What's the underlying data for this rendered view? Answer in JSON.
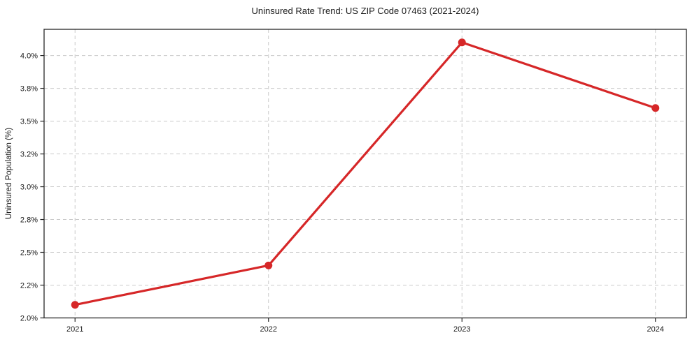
{
  "figure": {
    "background": "#ffffff"
  },
  "chart_data": {
    "type": "line",
    "title": "Uninsured Rate Trend: US ZIP Code 07463 (2021-2024)",
    "xlabel": "",
    "ylabel": "Uninsured Population (%)",
    "x": [
      2021,
      2022,
      2023,
      2024
    ],
    "series": [
      {
        "name": "Uninsured rate",
        "values": [
          2.1,
          2.4,
          4.1,
          3.6
        ],
        "color": "#d62728",
        "marker": "circle",
        "line_width": 3.2,
        "marker_radius": 5.5
      }
    ],
    "xlim": [
      2020.84,
      2024.16
    ],
    "ylim": [
      2.0,
      4.2
    ],
    "xticks": {
      "values": [
        2021,
        2022,
        2023,
        2024
      ],
      "labels": [
        "2021",
        "2022",
        "2023",
        "2024"
      ]
    },
    "yticks": {
      "values": [
        2.0,
        2.25,
        2.5,
        2.75,
        3.0,
        3.25,
        3.5,
        3.75,
        4.0
      ],
      "labels": [
        "2.0%",
        "2.2%",
        "2.5%",
        "2.8%",
        "3.0%",
        "3.2%",
        "3.5%",
        "3.8%",
        "4.0%"
      ]
    },
    "grid": true,
    "grid_color": "#c9c9c9",
    "grid_dash": "5 4",
    "axis_color": "#262626",
    "text_color": "#1a1a1a",
    "legend": null
  }
}
